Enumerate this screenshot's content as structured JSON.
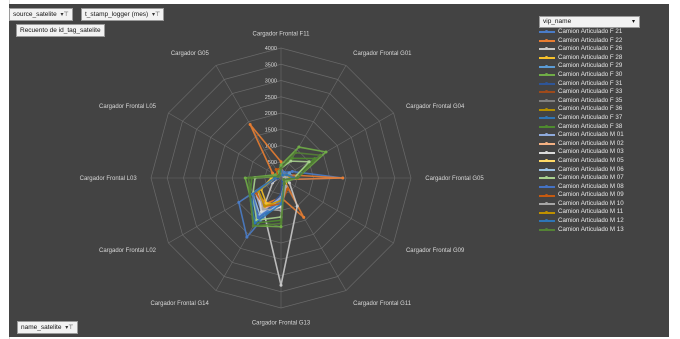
{
  "filters": {
    "top_left_1": "source_satelite",
    "top_left_2": "t_stamp_logger (mes)",
    "value_field": "Recuento de id_tag_satelite",
    "bottom_left": "name_satelite",
    "legend_field": "vip_name",
    "filter_icon": "▾⊤",
    "dropdown_icon": "▾"
  },
  "chart_data": {
    "type": "radar",
    "title": "",
    "categories": [
      "Cargador Frontal F11",
      "Cargador Frontal G01",
      "Cargador Frontal G04",
      "Cargador Frontal G05",
      "Cargador Frontal G09",
      "Cargador Frontal G11",
      "Cargador Frontal G13",
      "Cargador Frontal G14",
      "Cargador Frontal L02",
      "Cargador Frontal L03",
      "Cargador Frontal L05",
      "Cargador G05"
    ],
    "rlim": [
      0,
      4000
    ],
    "ticks": [
      0,
      500,
      1000,
      1500,
      2000,
      2500,
      3000,
      3500,
      4000
    ],
    "tick_labels": [
      "0",
      "500",
      "1000",
      "1500",
      "2000",
      "2500",
      "3000",
      "3500",
      "4000"
    ],
    "grid": true,
    "legend_position": "right",
    "series": [
      {
        "name": "Camion Articulado F 21",
        "color": "#4a7cc7",
        "values": [
          300,
          200,
          400,
          1900,
          100,
          300,
          600,
          2100,
          1500,
          200,
          100,
          100
        ]
      },
      {
        "name": "Camion Articulado F 22",
        "color": "#e87d31",
        "values": [
          500,
          100,
          200,
          1900,
          100,
          1400,
          600,
          900,
          900,
          200,
          300,
          1900
        ]
      },
      {
        "name": "Camion Articulado F 26",
        "color": "#c9c9c9",
        "values": [
          200,
          100,
          100,
          100,
          300,
          1000,
          3300,
          1100,
          300,
          100,
          100,
          200
        ]
      },
      {
        "name": "Camion Articulado F 28",
        "color": "#f5c02a",
        "values": [
          300,
          100,
          200,
          300,
          200,
          300,
          800,
          900,
          700,
          300,
          100,
          100
        ]
      },
      {
        "name": "Camion Articulado F 29",
        "color": "#5b9bd5",
        "values": [
          200,
          100,
          300,
          400,
          100,
          200,
          700,
          1500,
          1000,
          200,
          100,
          100
        ]
      },
      {
        "name": "Camion Articulado F 30",
        "color": "#70ad47",
        "values": [
          400,
          1100,
          1600,
          500,
          200,
          200,
          1500,
          1700,
          1100,
          1100,
          200,
          200
        ]
      },
      {
        "name": "Camion Articulado F 31",
        "color": "#2e5597",
        "values": [
          200,
          100,
          100,
          500,
          100,
          100,
          500,
          1500,
          1000,
          100,
          100,
          100
        ]
      },
      {
        "name": "Camion Articulado F 33",
        "color": "#9e4a1b",
        "values": [
          300,
          100,
          200,
          400,
          100,
          300,
          800,
          1000,
          900,
          200,
          100,
          100
        ]
      },
      {
        "name": "Camion Articulado F 35",
        "color": "#7f7f7f",
        "values": [
          200,
          100,
          100,
          300,
          100,
          200,
          900,
          1000,
          800,
          200,
          100,
          100
        ]
      },
      {
        "name": "Camion Articulado F 36",
        "color": "#b38f00",
        "values": [
          200,
          100,
          100,
          300,
          100,
          200,
          700,
          1000,
          800,
          200,
          100,
          100
        ]
      },
      {
        "name": "Camion Articulado F 37",
        "color": "#2f75b5",
        "values": [
          300,
          100,
          200,
          400,
          100,
          200,
          800,
          1400,
          1100,
          200,
          100,
          100
        ]
      },
      {
        "name": "Camion Articulado F 38",
        "color": "#4e8b2e",
        "values": [
          300,
          700,
          1200,
          400,
          100,
          200,
          1300,
          1600,
          1100,
          900,
          100,
          100
        ]
      },
      {
        "name": "Camion Articulado M 01",
        "color": "#8faadc",
        "values": [
          200,
          100,
          200,
          300,
          100,
          200,
          600,
          1200,
          900,
          200,
          100,
          100
        ]
      },
      {
        "name": "Camion Articulado M 02",
        "color": "#f4b183",
        "values": [
          300,
          100,
          200,
          400,
          100,
          300,
          700,
          1100,
          900,
          200,
          100,
          100
        ]
      },
      {
        "name": "Camion Articulado M 03",
        "color": "#dbdbdb",
        "values": [
          200,
          100,
          100,
          300,
          100,
          200,
          900,
          1200,
          800,
          200,
          100,
          100
        ]
      },
      {
        "name": "Camion Articulado M 05",
        "color": "#ffd966",
        "values": [
          200,
          100,
          200,
          300,
          100,
          200,
          700,
          1000,
          800,
          200,
          100,
          100
        ]
      },
      {
        "name": "Camion Articulado M 06",
        "color": "#9dc3e6",
        "values": [
          300,
          100,
          200,
          300,
          100,
          200,
          800,
          1300,
          1000,
          200,
          100,
          100
        ]
      },
      {
        "name": "Camion Articulado M 07",
        "color": "#a9d18e",
        "values": [
          300,
          600,
          1000,
          400,
          100,
          200,
          1200,
          1500,
          1000,
          800,
          100,
          100
        ]
      },
      {
        "name": "Camion Articulado M 08",
        "color": "#4472c4",
        "values": [
          200,
          100,
          200,
          400,
          100,
          200,
          700,
          1400,
          1000,
          200,
          100,
          100
        ]
      },
      {
        "name": "Camion Articulado M 09",
        "color": "#c55a11",
        "values": [
          300,
          100,
          200,
          500,
          100,
          400,
          800,
          1000,
          900,
          200,
          100,
          300
        ]
      },
      {
        "name": "Camion Articulado M 10",
        "color": "#a6a6a6",
        "values": [
          200,
          100,
          100,
          300,
          100,
          300,
          1000,
          1100,
          800,
          200,
          100,
          100
        ]
      },
      {
        "name": "Camion Articulado M 11",
        "color": "#bf9000",
        "values": [
          200,
          100,
          200,
          300,
          100,
          200,
          700,
          1000,
          800,
          200,
          100,
          100
        ]
      },
      {
        "name": "Camion Articulado M 12",
        "color": "#2e75b6",
        "values": [
          300,
          100,
          200,
          400,
          100,
          200,
          800,
          1600,
          1100,
          200,
          100,
          100
        ]
      },
      {
        "name": "Camion Articulado M 13",
        "color": "#548235",
        "values": [
          300,
          900,
          1400,
          500,
          100,
          200,
          1400,
          1700,
          1100,
          1000,
          100,
          100
        ]
      }
    ]
  }
}
